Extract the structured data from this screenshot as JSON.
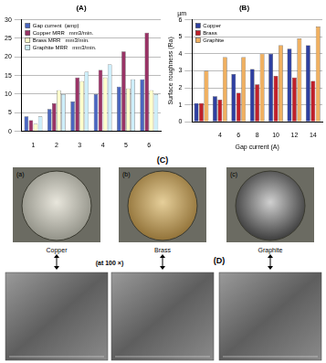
{
  "chart_data": [
    {
      "type": "bar",
      "title": "(A)",
      "categories": [
        1,
        2,
        3,
        4,
        5,
        6
      ],
      "series": [
        {
          "name": "Gap current  (amp)",
          "color": "#4a66c0",
          "values": [
            4,
            6,
            8,
            10,
            12,
            14
          ]
        },
        {
          "name": "Copper MRR   mm3/min.",
          "color": "#993366",
          "values": [
            3,
            7.5,
            14.5,
            16.5,
            21.5,
            26.5
          ]
        },
        {
          "name": "Brass MRR   mm3/min.",
          "color": "#ffffcc",
          "values": [
            2,
            11,
            13.5,
            14.5,
            11.5,
            11
          ]
        },
        {
          "name": "Graphite MRR   mm3/min.",
          "color": "#cdeefa",
          "values": [
            4,
            10,
            16,
            18,
            14,
            10
          ]
        }
      ],
      "ylim": [
        0,
        30
      ],
      "yticks": [
        0,
        5,
        10,
        15,
        20,
        25,
        30
      ],
      "grid": true,
      "legend": "upper left"
    },
    {
      "type": "bar",
      "title": "(B)",
      "xlabel": "Gap current (A)",
      "ylabel": "Surface roughness (Ra)",
      "annotations": [
        "µm"
      ],
      "categories": [
        null,
        4,
        6,
        8,
        10,
        12,
        14
      ],
      "series": [
        {
          "name": "Copper",
          "color": "#2e3fa0",
          "values": [
            1.1,
            1.5,
            2.8,
            3.1,
            4.0,
            4.3,
            4.5
          ]
        },
        {
          "name": "Brass",
          "color": "#c0202a",
          "values": [
            1.1,
            1.3,
            1.7,
            2.2,
            2.7,
            2.6,
            2.4
          ]
        },
        {
          "name": "Graphite",
          "color": "#f0b060",
          "values": [
            3.0,
            3.8,
            3.8,
            4.0,
            4.5,
            4.9,
            5.6
          ]
        }
      ],
      "ylim": [
        0,
        6
      ],
      "yticks": [
        0,
        1,
        2,
        3,
        4,
        5,
        6
      ],
      "grid": true,
      "legend": "upper left"
    }
  ],
  "figure": {
    "panel_C": {
      "label": "(C)",
      "photos": [
        "(a)",
        "(b)",
        "(c)"
      ]
    },
    "materials": [
      "Copper",
      "Brass",
      "Graphite"
    ],
    "magnification": "(at 100 ×)",
    "panel_D": {
      "label": "(D)"
    }
  }
}
